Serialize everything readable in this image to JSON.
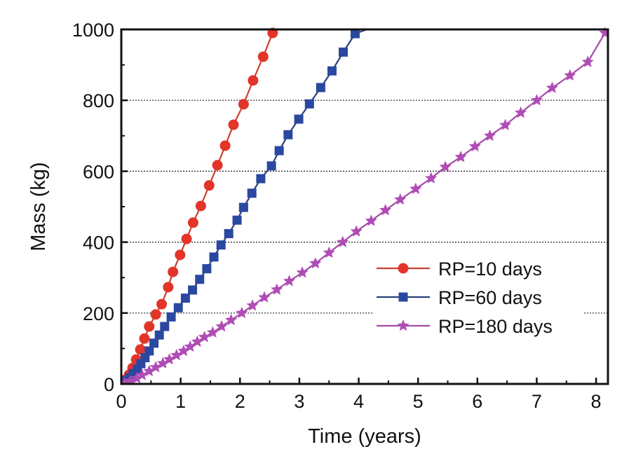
{
  "chart_data": {
    "type": "line",
    "title": "",
    "xlabel": "Time (years)",
    "ylabel": "Mass (kg)",
    "xlim": [
      0,
      8.2
    ],
    "ylim": [
      0,
      1000
    ],
    "xticks": [
      0,
      1,
      2,
      3,
      4,
      5,
      6,
      7,
      8
    ],
    "xtick_labels": [
      "0",
      "1",
      "2",
      "3",
      "4",
      "5",
      "6",
      "7",
      "8"
    ],
    "yticks": [
      0,
      200,
      400,
      600,
      800,
      1000
    ],
    "ytick_labels": [
      "0",
      "200",
      "400",
      "600",
      "800",
      "1000"
    ],
    "grid": "horizontal dotted at 200, 400, 600, 800",
    "legend": {
      "position": "bottom-right"
    },
    "series": [
      {
        "name": "RP=10 days",
        "color": "#e3342a",
        "line_color": "#c8402f",
        "marker": "circle",
        "x": [
          0.02,
          0.07,
          0.13,
          0.19,
          0.25,
          0.32,
          0.39,
          0.47,
          0.58,
          0.68,
          0.79,
          0.87,
          0.99,
          1.1,
          1.21,
          1.34,
          1.48,
          1.62,
          1.75,
          1.89,
          2.06,
          2.22,
          2.39,
          2.55
        ],
        "y": [
          4,
          12,
          26,
          45,
          69,
          97,
          128,
          162,
          196,
          225,
          273,
          316,
          364,
          409,
          455,
          502,
          560,
          617,
          672,
          731,
          789,
          856,
          923,
          990
        ]
      },
      {
        "name": "RP=60 days",
        "color": "#2a48a0",
        "line_color": "#2b3f7c",
        "marker": "square",
        "x": [
          0.03,
          0.08,
          0.14,
          0.2,
          0.27,
          0.33,
          0.4,
          0.47,
          0.55,
          0.64,
          0.73,
          0.84,
          0.96,
          1.08,
          1.2,
          1.32,
          1.44,
          1.56,
          1.68,
          1.81,
          1.95,
          2.06,
          2.2,
          2.35,
          2.53,
          2.66,
          2.81,
          2.99,
          3.17,
          3.36,
          3.55,
          3.74,
          3.94,
          4.14,
          4.34,
          4.55
        ],
        "y": [
          3,
          9,
          18,
          29,
          42,
          57,
          74,
          93,
          115,
          138,
          162,
          189,
          215,
          242,
          265,
          295,
          325,
          358,
          392,
          424,
          462,
          498,
          538,
          579,
          615,
          658,
          703,
          747,
          790,
          836,
          883,
          936,
          988,
          1000,
          1000,
          1000
        ]
      },
      {
        "name": "RP=180 days",
        "color": "#b04cb5",
        "line_color": "#a54aaa",
        "marker": "star",
        "x": [
          0.05,
          0.15,
          0.26,
          0.35,
          0.47,
          0.58,
          0.7,
          0.81,
          0.93,
          1.05,
          1.16,
          1.28,
          1.4,
          1.54,
          1.69,
          1.85,
          2.03,
          2.21,
          2.41,
          2.62,
          2.83,
          3.05,
          3.27,
          3.5,
          3.73,
          3.96,
          4.21,
          4.45,
          4.7,
          4.96,
          5.22,
          5.46,
          5.72,
          5.96,
          6.21,
          6.47,
          6.73,
          7.0,
          7.26,
          7.56,
          7.86,
          8.15
        ],
        "y": [
          2,
          8,
          16,
          25,
          36,
          47,
          58,
          69,
          81,
          93,
          105,
          119,
          132,
          145,
          162,
          180,
          200,
          221,
          244,
          266,
          290,
          314,
          340,
          370,
          400,
          430,
          460,
          490,
          520,
          550,
          580,
          612,
          640,
          670,
          700,
          730,
          765,
          800,
          835,
          870,
          908,
          990
        ]
      }
    ]
  }
}
